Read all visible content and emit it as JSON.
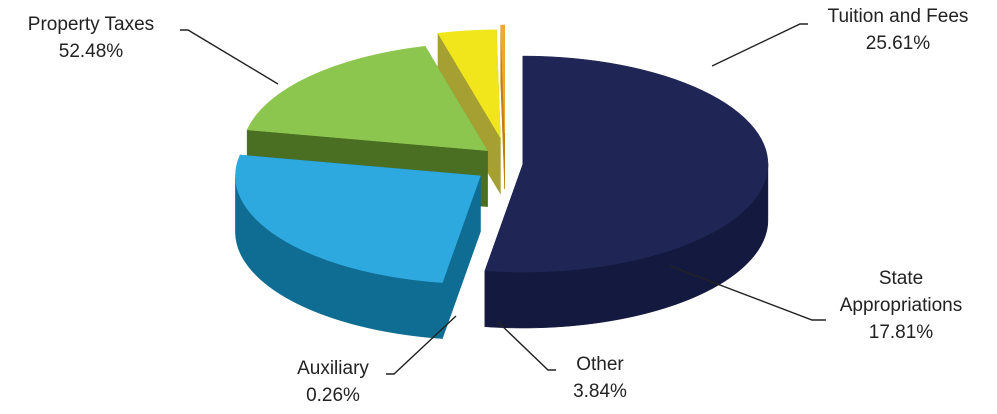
{
  "chart_data": {
    "type": "pie",
    "style": "3d-exploded",
    "title": "",
    "legend": "none",
    "slices": [
      {
        "label": "Property Taxes",
        "value": 52.48,
        "display": "52.48%",
        "top_color": "#1f2554",
        "side_color": "#141a3f"
      },
      {
        "label": "Tuition and Fees",
        "value": 25.61,
        "display": "25.61%",
        "top_color": "#2ea9df",
        "side_color": "#0f6d93"
      },
      {
        "label": "State Appropriations",
        "value": 17.81,
        "display": "17.81%",
        "top_color": "#8dc64f",
        "side_color": "#4a6e22"
      },
      {
        "label": "Other",
        "value": 3.84,
        "display": "3.84%",
        "top_color": "#f1e51c",
        "side_color": "#a6a032"
      },
      {
        "label": "Auxiliary",
        "value": 0.26,
        "display": "0.26%",
        "top_color": "#f0a830",
        "side_color": "#c07f12"
      }
    ]
  }
}
